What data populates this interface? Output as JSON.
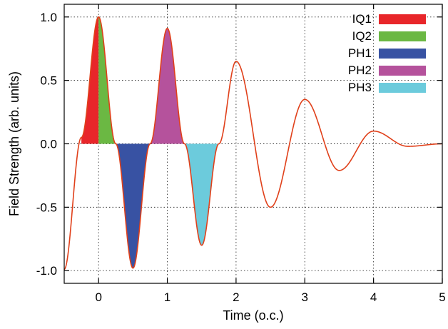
{
  "chart_data": {
    "type": "area",
    "xlabel": "Time (o.c.)",
    "ylabel": "Field Strength (arb. units)",
    "xlim": [
      -0.5,
      5
    ],
    "ylim": [
      -1.1,
      1.1
    ],
    "x_ticks": [
      0,
      1,
      2,
      3,
      4,
      5
    ],
    "x_tick_labels": [
      "0",
      "1",
      "2",
      "3",
      "4",
      "5"
    ],
    "y_ticks": [
      1.0,
      0.5,
      0.0,
      -0.5,
      -1.0
    ],
    "y_tick_labels": [
      "1.0",
      "0.5",
      "0.0",
      "-0.5",
      "-1.0"
    ],
    "grid": true,
    "legend_position": "top-right",
    "curve": {
      "color": "#e0401a",
      "description": "damped cosine oscillation",
      "x": [
        -0.5,
        -0.25,
        0,
        0.25,
        0.5,
        0.75,
        1,
        1.25,
        1.5,
        1.75,
        2,
        2.5,
        3,
        3.5,
        4,
        4.5,
        5
      ],
      "y": [
        -0.99,
        0.05,
        1.0,
        0.0,
        -0.98,
        0.0,
        0.91,
        0.0,
        -0.8,
        0.0,
        0.65,
        -0.5,
        0.35,
        -0.21,
        0.1,
        -0.02,
        0.0
      ]
    },
    "series": [
      {
        "name": "IQ1",
        "color": "#e8262a",
        "x_range": [
          -0.25,
          0
        ]
      },
      {
        "name": "IQ2",
        "color": "#6bb843",
        "x_range": [
          0,
          0.25
        ]
      },
      {
        "name": "PH1",
        "color": "#3852a3",
        "x_range": [
          0.25,
          0.75
        ]
      },
      {
        "name": "PH2",
        "color": "#b5529c",
        "x_range": [
          0.75,
          1.25
        ]
      },
      {
        "name": "PH3",
        "color": "#6ccbdc",
        "x_range": [
          1.25,
          1.75
        ]
      }
    ]
  }
}
